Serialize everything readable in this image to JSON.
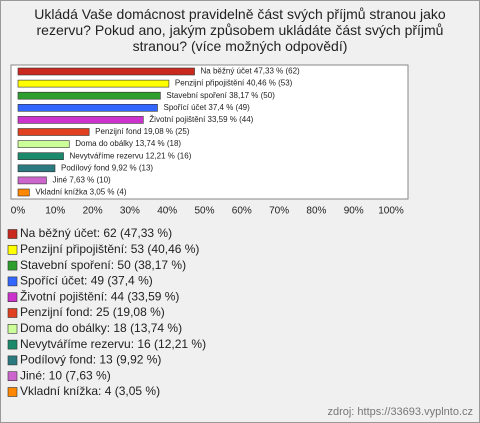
{
  "chart_data": {
    "type": "bar",
    "orientation": "horizontal",
    "title": "Ukládá Vaše domácnost pravidelně část svých příjmů stranou jako rezervu? Pokud ano, jakým způsobem ukládáte část svých příjmů stranou? (více možných odpovědí)",
    "values": [
      47.33,
      40.46,
      38.17,
      37.4,
      33.59,
      19.08,
      13.74,
      12.21,
      9.92,
      7.63,
      3.05
    ],
    "value_labels": [
      "Na běžný účet 47,33 % (62)",
      "Penzijní připojištění 40,46 % (53)",
      "Stavební spoření 38,17 % (50)",
      "Spořící účet 37,4 % (49)",
      "Životní pojištění 33,59 % (44)",
      "Penzijní fond 19,08 % (25)",
      "Doma do obálky 13,74 % (18)",
      "Nevytváříme rezervu 12,21 % (16)",
      "Podílový fond 9,92 % (13)",
      "Jiné 7,63 % (10)",
      "Vkladní knížka 3,05 % (4)"
    ],
    "legend_labels": [
      "Na běžný účet: 62 (47,33 %)",
      "Penzijní připojištění: 53 (40,46 %)",
      "Stavební spoření: 50 (38,17 %)",
      "Spořící účet: 49 (37,4 %)",
      "Životní pojištění: 44 (33,59 %)",
      "Penzijní fond: 25 (19,08 %)",
      "Doma do obálky: 18 (13,74 %)",
      "Nevytváříme rezervu: 16 (12,21 %)",
      "Podílový fond: 13 (9,92 %)",
      "Jiné: 10 (7,63 %)",
      "Vkladní knížka: 4 (3,05 %)"
    ],
    "colors": [
      "#c8281e",
      "#ffff00",
      "#2e9e2e",
      "#3366ff",
      "#cc33cc",
      "#e04020",
      "#ccff99",
      "#1a8a6a",
      "#2a7a80",
      "#cc66cc",
      "#ff8800"
    ],
    "xlim": [
      0,
      100
    ],
    "xticks": [
      {
        "value": 0,
        "label": "0%"
      },
      {
        "value": 10,
        "label": "10%"
      },
      {
        "value": 20,
        "label": "20%"
      },
      {
        "value": 30,
        "label": "30%"
      },
      {
        "value": 40,
        "label": "40%"
      },
      {
        "value": 50,
        "label": "50%"
      },
      {
        "value": 60,
        "label": "60%"
      },
      {
        "value": 70,
        "label": "70%"
      },
      {
        "value": 80,
        "label": "80%"
      },
      {
        "value": 90,
        "label": "90%"
      },
      {
        "value": 100,
        "label": "100%"
      }
    ],
    "grid": false,
    "source": "zdroj: https://33693.vyplnto.cz"
  }
}
